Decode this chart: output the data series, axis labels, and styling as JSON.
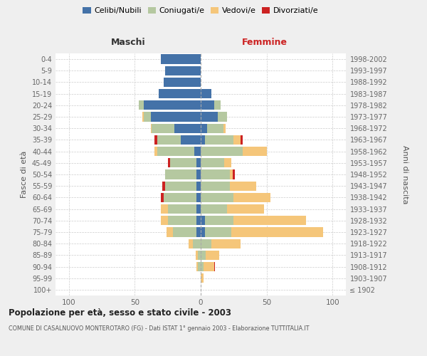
{
  "age_groups": [
    "100+",
    "95-99",
    "90-94",
    "85-89",
    "80-84",
    "75-79",
    "70-74",
    "65-69",
    "60-64",
    "55-59",
    "50-54",
    "45-49",
    "40-44",
    "35-39",
    "30-34",
    "25-29",
    "20-24",
    "15-19",
    "10-14",
    "5-9",
    "0-4"
  ],
  "birth_years": [
    "≤ 1902",
    "1903-1907",
    "1908-1912",
    "1913-1917",
    "1918-1922",
    "1923-1927",
    "1928-1932",
    "1933-1937",
    "1938-1942",
    "1943-1947",
    "1948-1952",
    "1953-1957",
    "1958-1962",
    "1963-1967",
    "1968-1972",
    "1973-1977",
    "1978-1982",
    "1983-1987",
    "1988-1992",
    "1993-1997",
    "1998-2002"
  ],
  "maschi": {
    "celibi": [
      0,
      0,
      0,
      0,
      0,
      3,
      3,
      3,
      3,
      3,
      3,
      3,
      5,
      15,
      20,
      38,
      43,
      32,
      28,
      27,
      30
    ],
    "coniugati": [
      0,
      0,
      2,
      2,
      6,
      18,
      22,
      22,
      25,
      24,
      24,
      20,
      28,
      18,
      17,
      5,
      4,
      0,
      0,
      0,
      0
    ],
    "vedovi": [
      0,
      0,
      1,
      2,
      3,
      5,
      5,
      5,
      0,
      0,
      0,
      0,
      2,
      0,
      1,
      1,
      0,
      0,
      0,
      0,
      0
    ],
    "divorziati": [
      0,
      0,
      0,
      0,
      0,
      0,
      0,
      0,
      2,
      2,
      0,
      2,
      0,
      2,
      0,
      0,
      0,
      0,
      0,
      0,
      0
    ]
  },
  "femmine": {
    "nubili": [
      0,
      0,
      0,
      0,
      0,
      3,
      3,
      0,
      0,
      0,
      0,
      0,
      0,
      3,
      5,
      13,
      10,
      8,
      0,
      0,
      0
    ],
    "coniugate": [
      0,
      0,
      2,
      4,
      8,
      20,
      22,
      20,
      25,
      22,
      22,
      18,
      32,
      22,
      12,
      7,
      5,
      0,
      0,
      0,
      0
    ],
    "vedove": [
      0,
      2,
      8,
      10,
      22,
      70,
      55,
      28,
      28,
      20,
      2,
      5,
      18,
      5,
      2,
      0,
      0,
      0,
      0,
      0,
      0
    ],
    "divorziate": [
      0,
      0,
      1,
      0,
      0,
      0,
      0,
      0,
      0,
      0,
      2,
      0,
      0,
      2,
      0,
      0,
      0,
      0,
      0,
      0,
      0
    ]
  },
  "colors": {
    "celibi": "#4472a8",
    "coniugati": "#b5c8a0",
    "vedovi": "#f5c67a",
    "divorziati": "#cc2222"
  },
  "xlim": 110,
  "title": "Popolazione per età, sesso e stato civile - 2003",
  "subtitle": "COMUNE DI CASALNUOVO MONTEROTARO (FG) - Dati ISTAT 1° gennaio 2003 - Elaborazione TUTTITALIA.IT",
  "ylabel_left": "Fasce di età",
  "ylabel_right": "Anni di nascita",
  "legend_labels": [
    "Celibi/Nubili",
    "Coniugati/e",
    "Vedovi/e",
    "Divorziati/e"
  ],
  "maschi_label": "Maschi",
  "femmine_label": "Femmine",
  "background_color": "#efefef",
  "plot_bg_color": "#ffffff",
  "bar_height": 0.82
}
